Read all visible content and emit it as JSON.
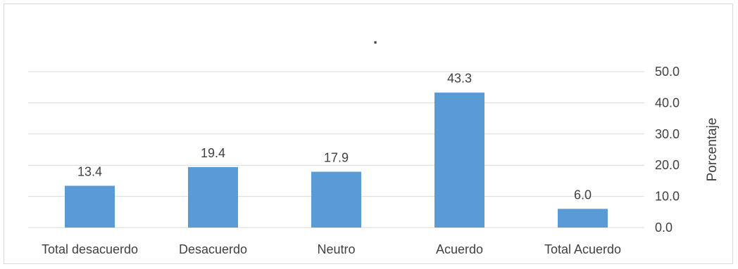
{
  "chart_data": {
    "type": "bar",
    "title": ".",
    "categories": [
      "Total desacuerdo",
      "Desacuerdo",
      "Neutro",
      "Acuerdo",
      "Total Acuerdo"
    ],
    "values": [
      13.4,
      19.4,
      17.9,
      43.3,
      6.0
    ],
    "data_labels": [
      "13.4",
      "19.4",
      "17.9",
      "43.3",
      "6.0"
    ],
    "ylabel": "Porcentaje",
    "xlabel": "",
    "ylim": [
      0,
      50
    ],
    "yticks": [
      "0.0",
      "10.0",
      "20.0",
      "30.0",
      "40.0",
      "50.0"
    ],
    "y_axis_position": "right",
    "grid": true,
    "legend": "none",
    "bar_color": "#5b9bd5",
    "grid_color": "#d9d9d9",
    "text_color": "#404040"
  }
}
